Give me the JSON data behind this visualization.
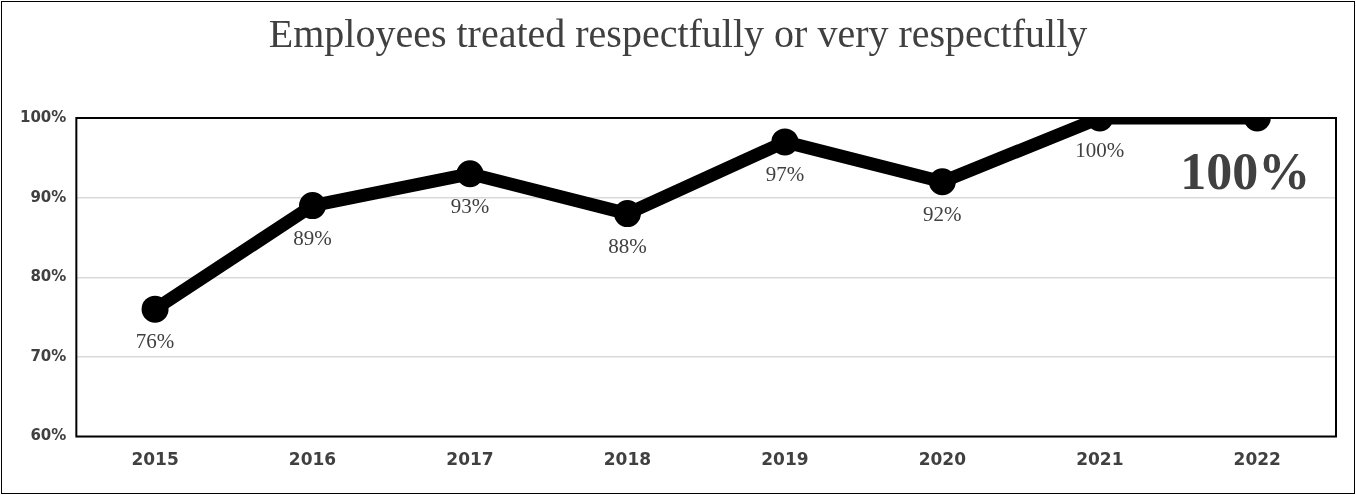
{
  "chart_data": {
    "type": "line",
    "title": "Employees treated respectfully or very respectfully",
    "categories": [
      "2015",
      "2016",
      "2017",
      "2018",
      "2019",
      "2020",
      "2021",
      "2022"
    ],
    "series": [
      {
        "color": "#000000",
        "values": [
          76,
          89,
          93,
          88,
          97,
          92,
          100,
          100
        ],
        "value_labels": [
          "76%",
          "89%",
          "93%",
          "88%",
          "97%",
          "92%",
          "100%",
          "100%"
        ]
      }
    ],
    "ylim": [
      60,
      100
    ],
    "yticks": [
      {
        "value": 60,
        "label": "60%"
      },
      {
        "value": 70,
        "label": "70%"
      },
      {
        "value": 80,
        "label": "80%"
      },
      {
        "value": 90,
        "label": "90%"
      },
      {
        "value": 100,
        "label": "100%"
      }
    ],
    "grid": "y",
    "legend": false,
    "marker": "circle",
    "line_style": "solid"
  }
}
